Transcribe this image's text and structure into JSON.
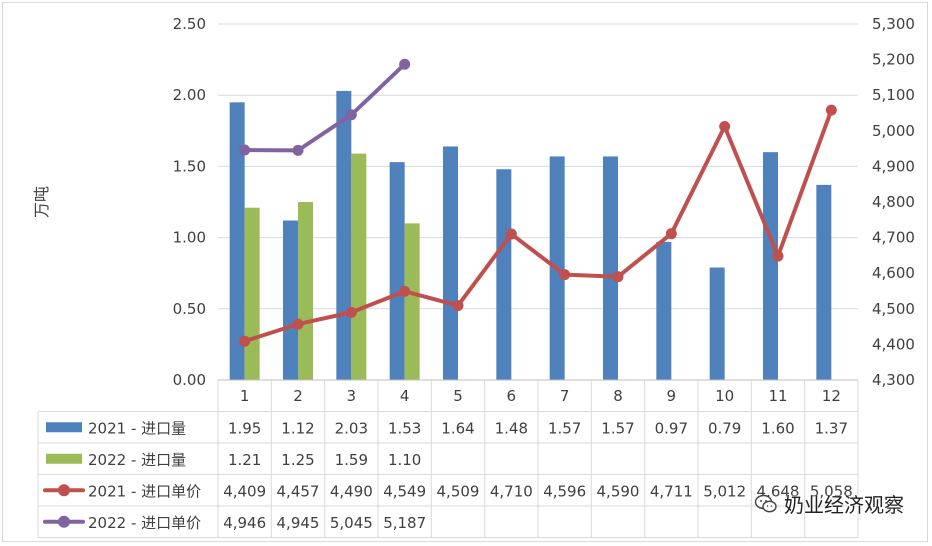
{
  "chart_data": {
    "type": "bar",
    "ylabel": "万吨",
    "categories": [
      "1",
      "2",
      "3",
      "4",
      "5",
      "6",
      "7",
      "8",
      "9",
      "10",
      "11",
      "12"
    ],
    "left_axis": {
      "ylim": [
        0,
        2.5
      ],
      "ticks": [
        "0.00",
        "0.50",
        "1.00",
        "1.50",
        "2.00",
        "2.50"
      ]
    },
    "right_axis": {
      "ylim": [
        4300,
        5300
      ],
      "ticks": [
        "4,300",
        "4,400",
        "4,500",
        "4,600",
        "4,700",
        "4,800",
        "4,900",
        "5,000",
        "5,100",
        "5,200",
        "5,300"
      ]
    },
    "series": [
      {
        "name": "2021 - 进口量",
        "type": "bar",
        "axis": "left",
        "color": "#4F81BD",
        "values": [
          1.95,
          1.12,
          2.03,
          1.53,
          1.64,
          1.48,
          1.57,
          1.57,
          0.97,
          0.79,
          1.6,
          1.37
        ],
        "labels": [
          "1.95",
          "1.12",
          "2.03",
          "1.53",
          "1.64",
          "1.48",
          "1.57",
          "1.57",
          "0.97",
          "0.79",
          "1.60",
          "1.37"
        ]
      },
      {
        "name": "2022 - 进口量",
        "type": "bar",
        "axis": "left",
        "color": "#9BBB59",
        "values": [
          1.21,
          1.25,
          1.59,
          1.1,
          null,
          null,
          null,
          null,
          null,
          null,
          null,
          null
        ],
        "labels": [
          "1.21",
          "1.25",
          "1.59",
          "1.10",
          "",
          "",
          "",
          "",
          "",
          "",
          "",
          ""
        ]
      },
      {
        "name": "2021 - 进口单价",
        "type": "line",
        "axis": "right",
        "color": "#C0504D",
        "values": [
          4409,
          4457,
          4490,
          4549,
          4509,
          4710,
          4596,
          4590,
          4711,
          5012,
          4648,
          5058
        ],
        "labels": [
          "4,409",
          "4,457",
          "4,490",
          "4,549",
          "4,509",
          "4,710",
          "4,596",
          "4,590",
          "4,711",
          "5,012",
          "4,648",
          "5,058"
        ]
      },
      {
        "name": "2022 - 进口单价",
        "type": "line",
        "axis": "right",
        "color": "#8064A2",
        "values": [
          4946,
          4945,
          5045,
          5187,
          null,
          null,
          null,
          null,
          null,
          null,
          null,
          null
        ],
        "labels": [
          "4,946",
          "4,945",
          "5,045",
          "5,187",
          "",
          "",
          "",
          "",
          "",
          "",
          "",
          ""
        ]
      }
    ],
    "data_table": true,
    "grid": true
  },
  "watermark": {
    "text": "奶业经济观察",
    "icon": "wechat-icon"
  }
}
